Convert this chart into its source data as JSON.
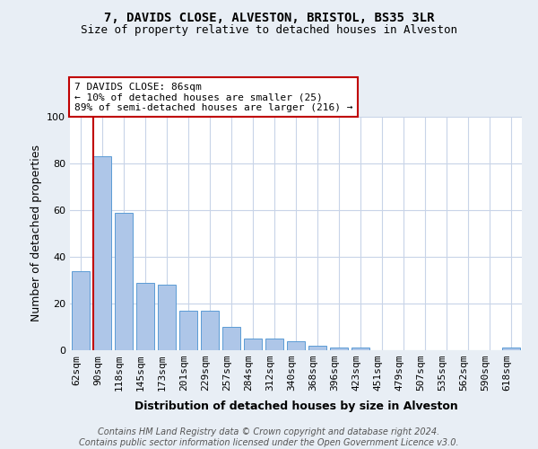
{
  "title": "7, DAVIDS CLOSE, ALVESTON, BRISTOL, BS35 3LR",
  "subtitle": "Size of property relative to detached houses in Alveston",
  "xlabel": "Distribution of detached houses by size in Alveston",
  "ylabel": "Number of detached properties",
  "categories": [
    "62sqm",
    "90sqm",
    "118sqm",
    "145sqm",
    "173sqm",
    "201sqm",
    "229sqm",
    "257sqm",
    "284sqm",
    "312sqm",
    "340sqm",
    "368sqm",
    "396sqm",
    "423sqm",
    "451sqm",
    "479sqm",
    "507sqm",
    "535sqm",
    "562sqm",
    "590sqm",
    "618sqm"
  ],
  "values": [
    34,
    83,
    59,
    29,
    28,
    17,
    17,
    10,
    5,
    5,
    4,
    2,
    1,
    1,
    0,
    0,
    0,
    0,
    0,
    0,
    1
  ],
  "bar_color": "#aec6e8",
  "bar_edge_color": "#5b9bd5",
  "highlight_index": 1,
  "highlight_color": "#c00000",
  "ylim": [
    0,
    100
  ],
  "yticks": [
    0,
    20,
    40,
    60,
    80,
    100
  ],
  "annotation_text": "7 DAVIDS CLOSE: 86sqm\n← 10% of detached houses are smaller (25)\n89% of semi-detached houses are larger (216) →",
  "annotation_box_color": "#ffffff",
  "annotation_box_edge": "#c00000",
  "footer_line1": "Contains HM Land Registry data © Crown copyright and database right 2024.",
  "footer_line2": "Contains public sector information licensed under the Open Government Licence v3.0.",
  "background_color": "#e8eef5",
  "plot_background_color": "#ffffff",
  "grid_color": "#c8d4e8",
  "title_fontsize": 10,
  "subtitle_fontsize": 9,
  "xlabel_fontsize": 9,
  "ylabel_fontsize": 9,
  "tick_fontsize": 8,
  "footer_fontsize": 7,
  "annotation_fontsize": 8
}
